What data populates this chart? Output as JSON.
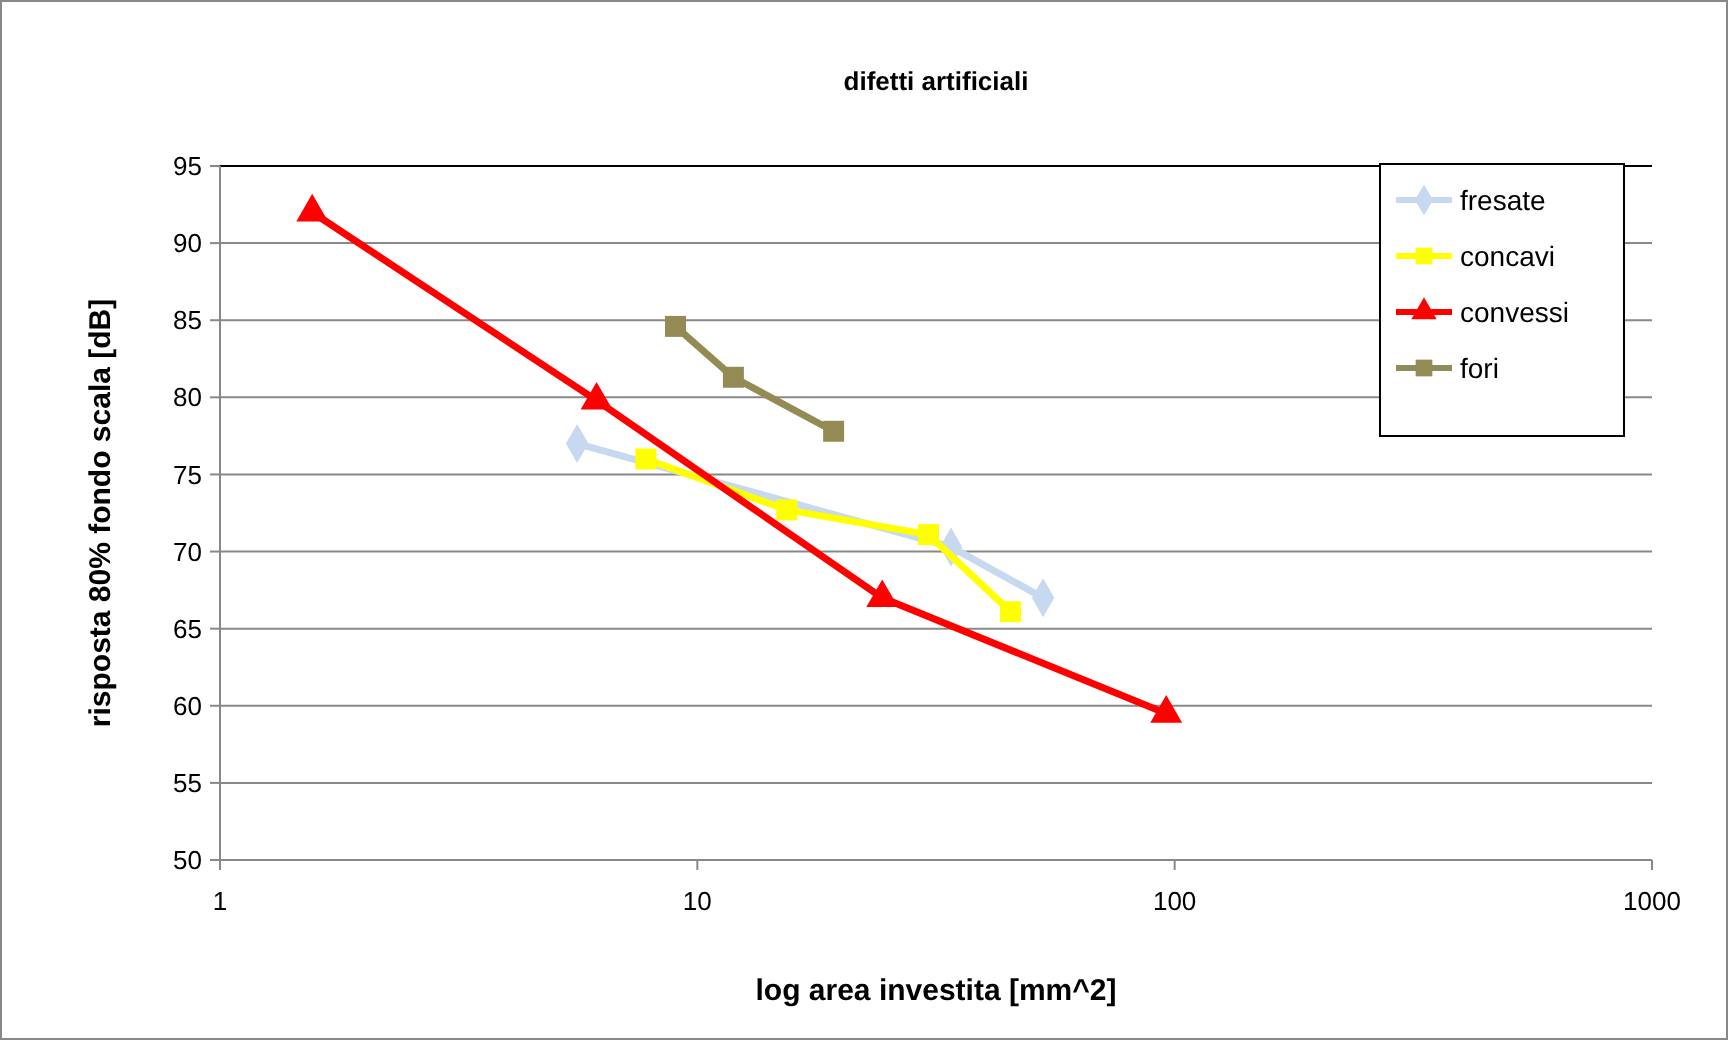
{
  "chart_data": {
    "type": "line",
    "title": "difetti artificiali",
    "xlabel": "log area investita [mm^2]",
    "ylabel": "risposta 80% fondo scala [dB]",
    "log": "x",
    "xlim": [
      1,
      1000
    ],
    "xticks": [
      1,
      10,
      100,
      1000
    ],
    "ylim": [
      50,
      95
    ],
    "yticks": [
      50,
      55,
      60,
      65,
      70,
      75,
      80,
      85,
      90,
      95
    ],
    "grid": "y",
    "legend": "top right",
    "series": [
      {
        "name": "fresate",
        "color": "#c6d9f0",
        "marker": "diamond",
        "x": [
          5.6,
          34,
          53
        ],
        "values": [
          77,
          70.3,
          67
        ]
      },
      {
        "name": "concavi",
        "color": "#ffff00",
        "marker": "square",
        "x": [
          7.8,
          15.4,
          30.5,
          45.3
        ],
        "values": [
          76,
          72.7,
          71.1,
          66.1
        ]
      },
      {
        "name": "convessi",
        "color": "#ff0000",
        "marker": "triangle",
        "x": [
          1.56,
          6.15,
          24.4,
          96
        ],
        "values": [
          92,
          79.8,
          67,
          59.5
        ]
      },
      {
        "name": "fori",
        "color": "#948a54",
        "marker": "square",
        "x": [
          9,
          11.9,
          19.3
        ],
        "values": [
          84.6,
          81.3,
          77.8
        ]
      }
    ]
  }
}
